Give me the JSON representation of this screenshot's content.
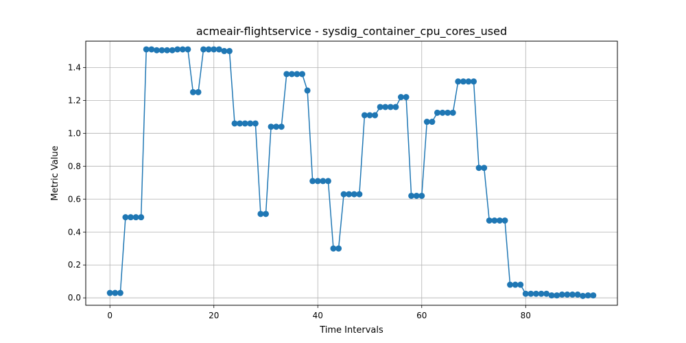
{
  "chart_data": {
    "type": "line",
    "title": "acmeair-flightservice - sysdig_container_cpu_cores_used",
    "xlabel": "Time Intervals",
    "ylabel": "Metric Value",
    "xlim": [
      -4.65,
      97.65
    ],
    "ylim": [
      -0.045,
      1.56
    ],
    "xticks": [
      0,
      20,
      40,
      60,
      80
    ],
    "yticks": [
      0.0,
      0.2,
      0.4,
      0.6,
      0.8,
      1.0,
      1.2,
      1.4
    ],
    "ytick_labels": [
      "0.0",
      "0.2",
      "0.4",
      "0.6",
      "0.8",
      "1.0",
      "1.2",
      "1.4"
    ],
    "grid": true,
    "legend": "none",
    "colors": {
      "series": "#1f77b4",
      "grid": "#b0b0b0"
    },
    "series": [
      {
        "values": [
          0.03,
          0.03,
          0.03,
          0.49,
          0.49,
          0.49,
          0.49,
          1.51,
          1.51,
          1.505,
          1.505,
          1.505,
          1.505,
          1.51,
          1.51,
          1.51,
          1.25,
          1.25,
          1.51,
          1.51,
          1.51,
          1.51,
          1.5,
          1.5,
          1.06,
          1.06,
          1.06,
          1.06,
          1.06,
          0.51,
          0.51,
          1.04,
          1.04,
          1.04,
          1.36,
          1.36,
          1.36,
          1.36,
          1.26,
          0.71,
          0.71,
          0.71,
          0.71,
          0.3,
          0.3,
          0.63,
          0.63,
          0.63,
          0.63,
          1.11,
          1.11,
          1.11,
          1.16,
          1.16,
          1.16,
          1.16,
          1.22,
          1.22,
          0.62,
          0.62,
          0.62,
          1.07,
          1.07,
          1.125,
          1.125,
          1.125,
          1.125,
          1.315,
          1.315,
          1.315,
          1.315,
          0.79,
          0.79,
          0.47,
          0.47,
          0.47,
          0.47,
          0.08,
          0.08,
          0.08,
          0.025,
          0.025,
          0.025,
          0.025,
          0.025,
          0.015,
          0.015,
          0.02,
          0.02,
          0.02,
          0.02,
          0.012,
          0.015,
          0.015
        ]
      }
    ]
  }
}
